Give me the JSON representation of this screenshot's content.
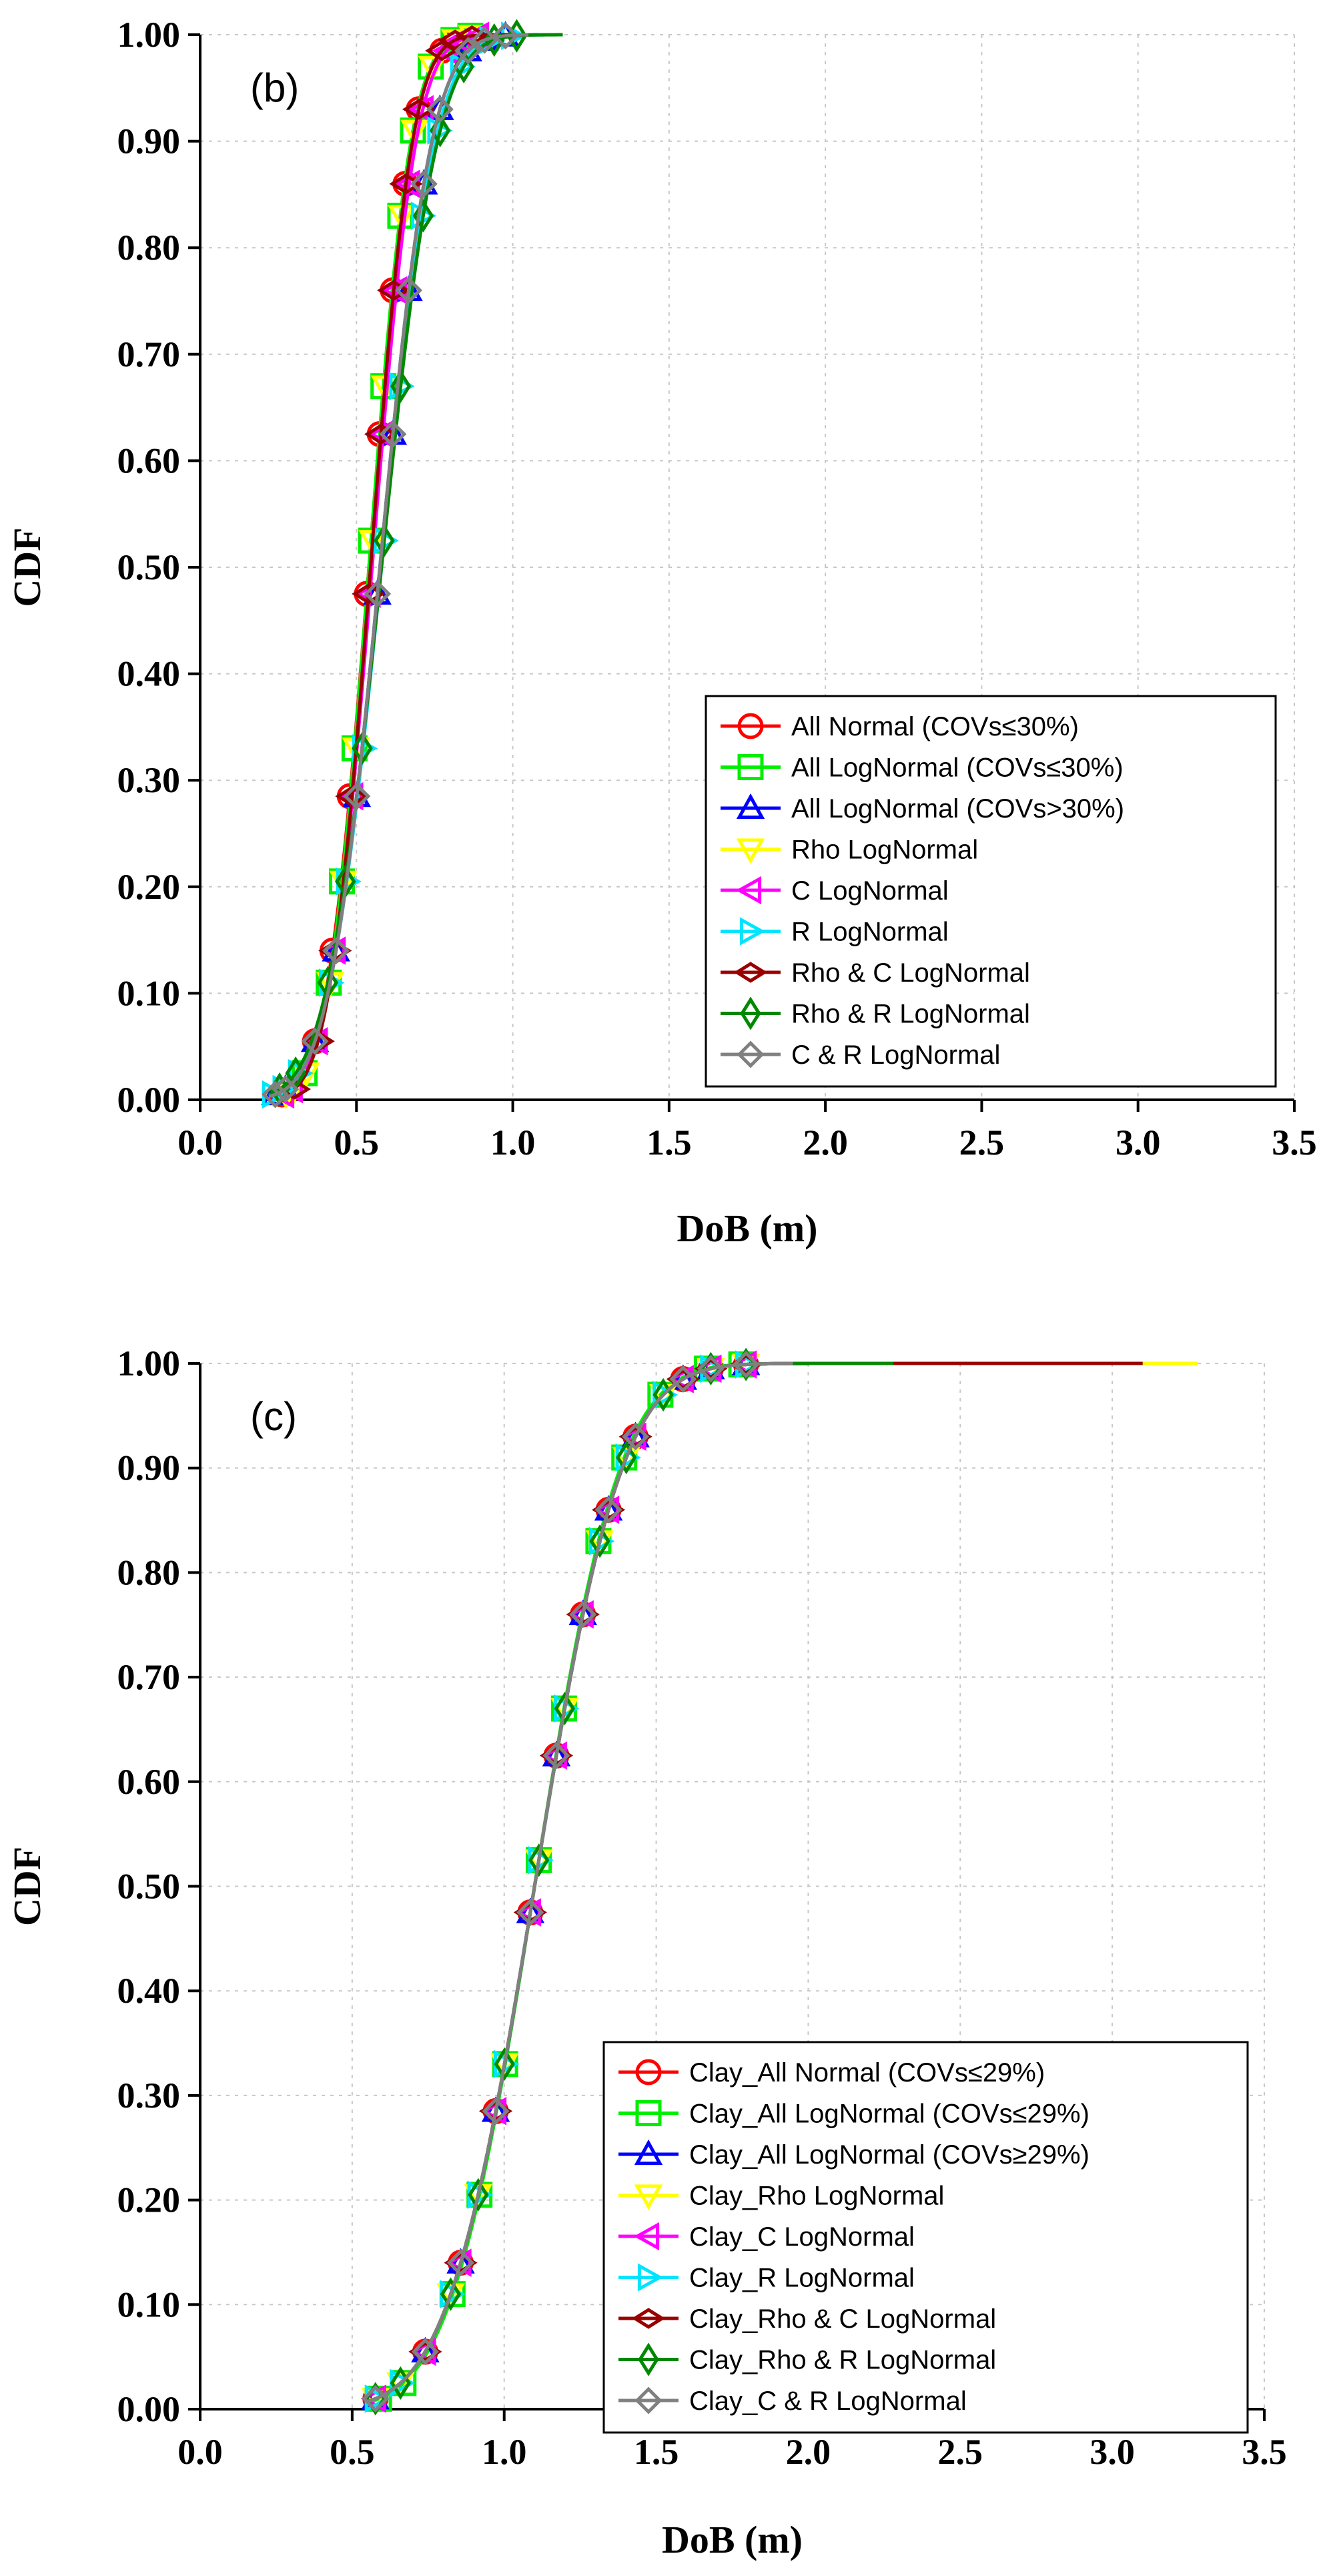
{
  "chart_data": [
    {
      "type": "line",
      "panel_label": "(b)",
      "xlabel": "DoB (m)",
      "ylabel": "CDF",
      "xlim": [
        0.0,
        3.5
      ],
      "ylim": [
        0.0,
        1.0
      ],
      "x_ticks": [
        "0.0",
        "0.5",
        "1.0",
        "1.5",
        "2.0",
        "2.5",
        "3.0",
        "3.5"
      ],
      "y_ticks": [
        "0.00",
        "0.10",
        "0.20",
        "0.30",
        "0.40",
        "0.50",
        "0.60",
        "0.70",
        "0.80",
        "0.90",
        "1.00"
      ],
      "grid": true,
      "legend_position": "lower-right",
      "series": [
        {
          "name": "All Normal (COVs≤30%)",
          "color": "#ff0000",
          "marker": "circle",
          "mu": 0.54,
          "sigma": 0.108,
          "xmin": 0.24,
          "xmax": 1.0
        },
        {
          "name": "All LogNormal (COVs≤30%)",
          "color": "#00ee00",
          "marker": "square",
          "mu": 0.54,
          "sigma": 0.105,
          "xmin": 0.3,
          "xmax": 0.92
        },
        {
          "name": "All LogNormal (COVs>30%)",
          "color": "#0000ff",
          "marker": "triangle-up",
          "mu": 0.575,
          "sigma": 0.13,
          "xmin": 0.22,
          "xmax": 1.08
        },
        {
          "name": "Rho LogNormal",
          "color": "#ffff00",
          "marker": "triangle-down",
          "mu": 0.545,
          "sigma": 0.105,
          "xmin": 0.26,
          "xmax": 1.0
        },
        {
          "name": "C LogNormal",
          "color": "#ff00ff",
          "marker": "triangle-left",
          "mu": 0.55,
          "sigma": 0.11,
          "xmin": 0.25,
          "xmax": 1.0
        },
        {
          "name": "R LogNormal",
          "color": "#00e5ff",
          "marker": "triangle-right",
          "mu": 0.58,
          "sigma": 0.135,
          "xmin": 0.22,
          "xmax": 1.1
        },
        {
          "name": "Rho & C LogNormal",
          "color": "#990000",
          "marker": "diamond-wide",
          "mu": 0.545,
          "sigma": 0.105,
          "xmin": 0.3,
          "xmax": 1.0
        },
        {
          "name": "Rho & R LogNormal",
          "color": "#008800",
          "marker": "diamond-tall",
          "mu": 0.58,
          "sigma": 0.14,
          "xmin": 0.22,
          "xmax": 1.16
        },
        {
          "name": "C & R LogNormal",
          "color": "#808080",
          "marker": "diamond",
          "mu": 0.575,
          "sigma": 0.13,
          "xmin": 0.22,
          "xmax": 1.05
        }
      ]
    },
    {
      "type": "line",
      "panel_label": "(c)",
      "xlabel": "DoB (m)",
      "ylabel": "CDF",
      "xlim": [
        0.0,
        3.5
      ],
      "ylim": [
        0.0,
        1.0
      ],
      "x_ticks": [
        "0.0",
        "0.5",
        "1.0",
        "1.5",
        "2.0",
        "2.5",
        "3.0",
        "3.5"
      ],
      "y_ticks": [
        "0.00",
        "0.10",
        "0.20",
        "0.30",
        "0.40",
        "0.50",
        "0.60",
        "0.70",
        "0.80",
        "0.90",
        "1.00"
      ],
      "grid": true,
      "legend_position": "lower-right",
      "series": [
        {
          "name": "Clay_All Normal (COVs≤29%)",
          "color": "#ff0000",
          "marker": "circle",
          "mu": 1.1,
          "sigma": 0.225,
          "xmin": 0.55,
          "xmax": 3.0
        },
        {
          "name": "Clay_All LogNormal (COVs≤29%)",
          "color": "#00ee00",
          "marker": "square",
          "mu": 1.1,
          "sigma": 0.22,
          "xmin": 0.56,
          "xmax": 2.15
        },
        {
          "name": "Clay_All LogNormal (COVs≥29%)",
          "color": "#0000ff",
          "marker": "triangle-up",
          "mu": 1.1,
          "sigma": 0.225,
          "xmin": 0.55,
          "xmax": 2.0
        },
        {
          "name": "Clay_Rho LogNormal",
          "color": "#ffff00",
          "marker": "triangle-down",
          "mu": 1.1,
          "sigma": 0.225,
          "xmin": 0.55,
          "xmax": 3.28
        },
        {
          "name": "Clay_C LogNormal",
          "color": "#ff00ff",
          "marker": "triangle-left",
          "mu": 1.1,
          "sigma": 0.225,
          "xmin": 0.55,
          "xmax": 1.82
        },
        {
          "name": "Clay_R LogNormal",
          "color": "#00e5ff",
          "marker": "triangle-right",
          "mu": 1.1,
          "sigma": 0.225,
          "xmin": 0.55,
          "xmax": 2.0
        },
        {
          "name": "Clay_Rho & C LogNormal",
          "color": "#990000",
          "marker": "diamond-wide",
          "mu": 1.1,
          "sigma": 0.225,
          "xmin": 0.6,
          "xmax": 3.1
        },
        {
          "name": "Clay_Rho & R LogNormal",
          "color": "#008800",
          "marker": "diamond-tall",
          "mu": 1.1,
          "sigma": 0.225,
          "xmin": 0.55,
          "xmax": 2.28
        },
        {
          "name": "Clay_C & R LogNormal",
          "color": "#808080",
          "marker": "diamond",
          "mu": 1.1,
          "sigma": 0.225,
          "xmin": 0.55,
          "xmax": 1.95
        }
      ]
    }
  ]
}
